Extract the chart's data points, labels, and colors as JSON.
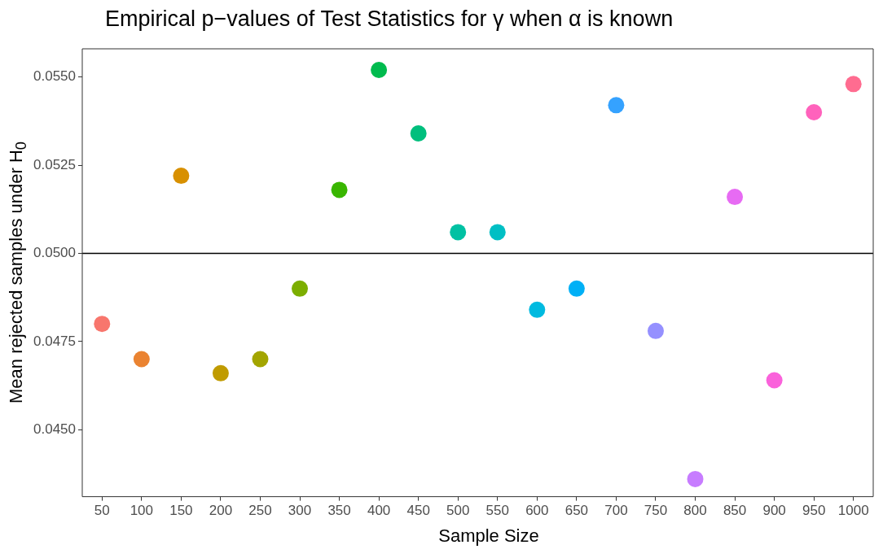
{
  "chart_data": {
    "type": "scatter",
    "title": "Empirical p−values of Test Statistics for γ when α is known",
    "xlabel": "Sample Size",
    "ylabel": "Mean rejected samples under H$_{0}$",
    "categories": [
      "50",
      "100",
      "150",
      "200",
      "250",
      "300",
      "350",
      "400",
      "450",
      "500",
      "550",
      "600",
      "650",
      "700",
      "750",
      "800",
      "850",
      "900",
      "950",
      "1000"
    ],
    "values": [
      0.048,
      0.047,
      0.0522,
      0.0466,
      0.047,
      0.049,
      0.0518,
      0.0552,
      0.0534,
      0.0506,
      0.0506,
      0.0484,
      0.049,
      0.0542,
      0.0478,
      0.0436,
      0.0516,
      0.0464,
      0.054,
      0.0548
    ],
    "colors": [
      "#F8766D",
      "#EA8331",
      "#D89000",
      "#C09B00",
      "#A3A500",
      "#7CAE00",
      "#39B600",
      "#00BB4E",
      "#00BF7D",
      "#00C1A3",
      "#00BFC4",
      "#00BAE0",
      "#00B0F6",
      "#35A2FF",
      "#9590FF",
      "#C77CFF",
      "#E76BF3",
      "#FA62DB",
      "#FF62BC",
      "#FF6C90"
    ],
    "ylim": [
      0.0431,
      0.0558
    ],
    "yticks": [
      {
        "value": 0.045,
        "label": "0.0450"
      },
      {
        "value": 0.0475,
        "label": "0.0475"
      },
      {
        "value": 0.05,
        "label": "0.0500"
      },
      {
        "value": 0.0525,
        "label": "0.0525"
      },
      {
        "value": 0.055,
        "label": "0.0550"
      }
    ],
    "ref_lines": [
      {
        "axis": "y",
        "value": 0.05,
        "color": "#000000"
      }
    ],
    "grid": false,
    "legend": false,
    "marker": "circle"
  }
}
